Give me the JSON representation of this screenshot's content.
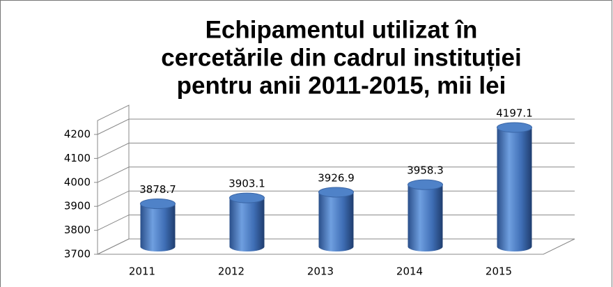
{
  "chart_data": {
    "type": "bar",
    "title_lines": [
      "Echipamentul utilizat în",
      "cercetările din cadrul instituției",
      "pentru anii 2011-2015, mii lei"
    ],
    "categories": [
      "2011",
      "2012",
      "2013",
      "2014",
      "2015"
    ],
    "values": [
      3878.7,
      3903.1,
      3926.9,
      3958.3,
      4197.1
    ],
    "color": "#4a7ebb",
    "ylim": [
      3700,
      4200
    ],
    "yticks": [
      3700,
      3800,
      3900,
      4000,
      4100,
      4200
    ],
    "grid": true
  }
}
